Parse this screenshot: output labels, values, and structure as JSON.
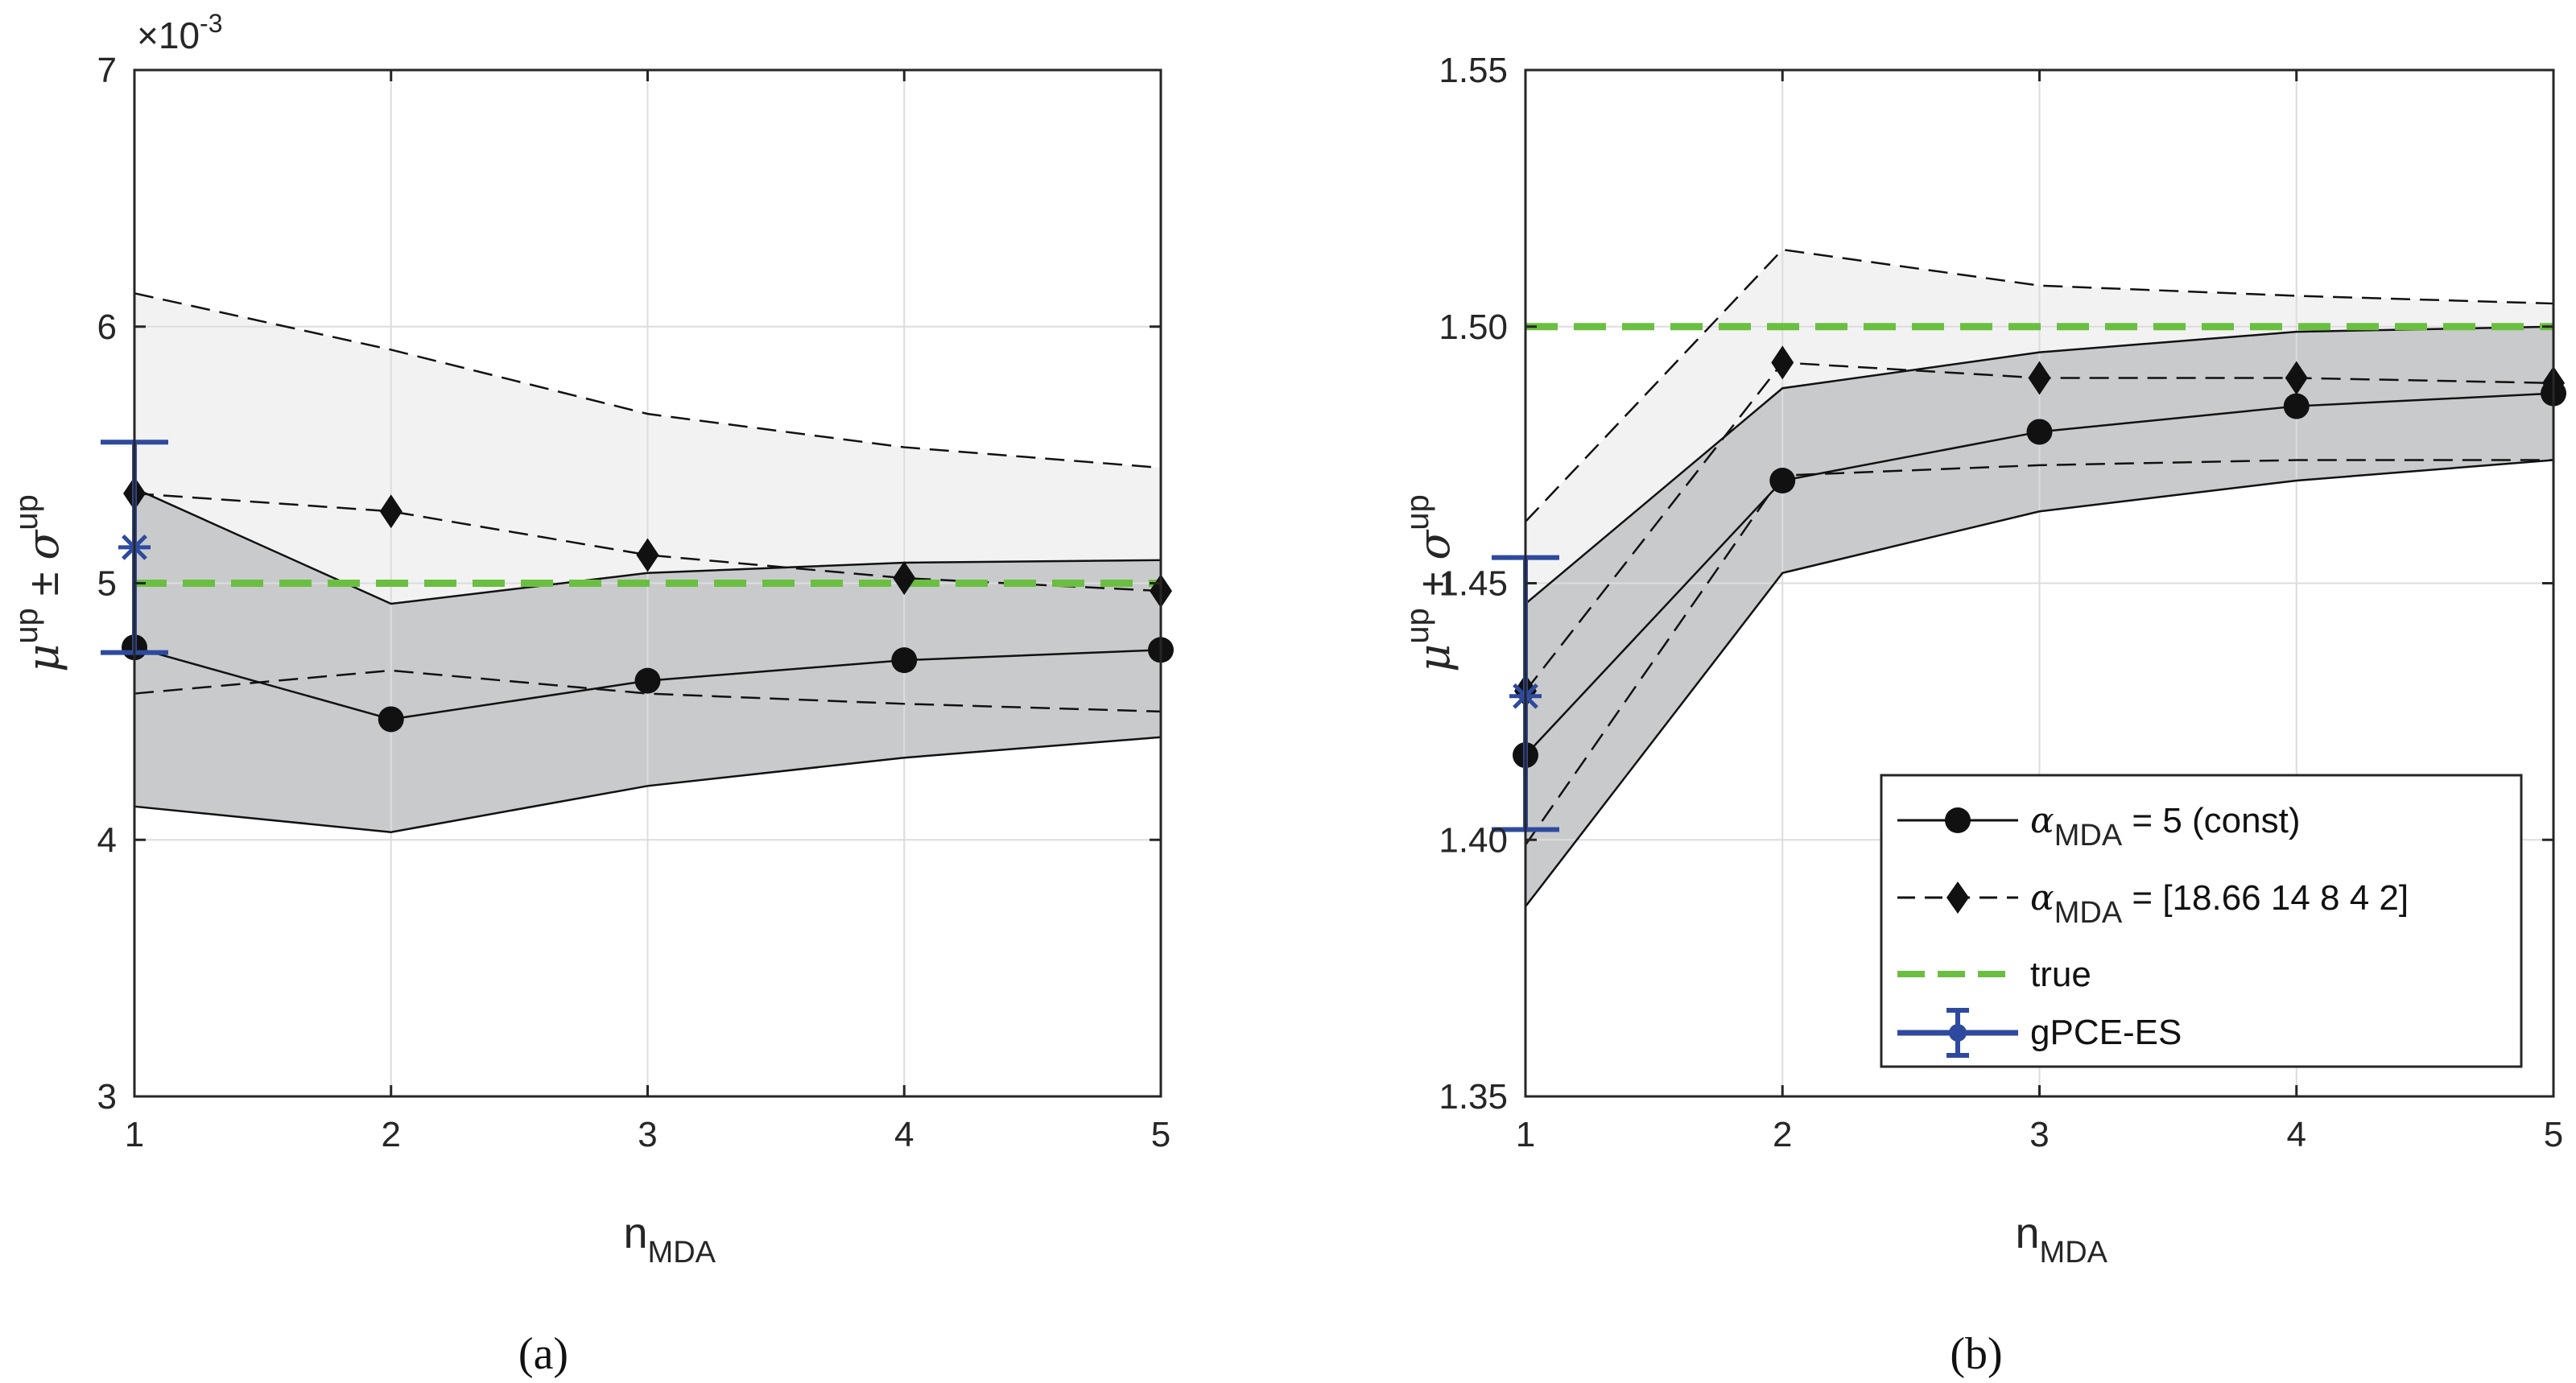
{
  "colors": {
    "band_light": "#f2f2f2",
    "band_dark": "#c9cacc",
    "line": "#111111",
    "grid": "#dcdcdc",
    "axis": "#262626",
    "true": "#6abf40",
    "gpce": "#2e4a9e"
  },
  "legend": {
    "items": [
      {
        "label_sym": "α",
        "label_sub": "MDA",
        "label_rest": " = 5 (const)",
        "style": "solid-circle"
      },
      {
        "label_sym": "α",
        "label_sub": "MDA",
        "label_rest": " = [18.66 14 8 4 2]",
        "style": "dashed-diamond"
      },
      {
        "label": "true",
        "style": "green-dashed"
      },
      {
        "label": "gPCE-ES",
        "style": "errorbar"
      }
    ]
  },
  "chart_data": [
    {
      "id": "a",
      "type": "line",
      "caption": "a",
      "xlabel": {
        "main": "n",
        "sub": "MDA"
      },
      "ylabel": {
        "sym": "μ",
        "sup1": "up",
        "pm": "±",
        "sym2": "σ",
        "sup2": "up"
      },
      "xlim": [
        1,
        5
      ],
      "ylim": [
        3,
        7
      ],
      "xticks": [
        1,
        2,
        3,
        4,
        5
      ],
      "yticks": [
        3,
        4,
        5,
        6,
        7
      ],
      "ytick_labels": [
        "3",
        "4",
        "5",
        "6",
        "7"
      ],
      "yscale_label": {
        "base": "×10",
        "exp": "-3"
      },
      "x": [
        1,
        2,
        3,
        4,
        5
      ],
      "series": [
        {
          "name": "alpha_MDA = 5 (const)",
          "mean": [
            4.75,
            4.47,
            4.62,
            4.7,
            4.74
          ],
          "upper": [
            5.37,
            4.92,
            5.04,
            5.08,
            5.09
          ],
          "lower": [
            4.13,
            4.03,
            4.21,
            4.32,
            4.4
          ]
        },
        {
          "name": "alpha_MDA = [18.66 14 8 4 2]",
          "mean": [
            5.35,
            5.28,
            5.11,
            5.02,
            4.97
          ],
          "upper": [
            6.13,
            5.91,
            5.66,
            5.53,
            5.45
          ],
          "lower": [
            4.57,
            4.66,
            4.57,
            4.53,
            4.5
          ]
        }
      ],
      "true_value": 5.0,
      "gpce_es": {
        "x": 1,
        "mean": 5.14,
        "upper": 5.55,
        "lower": 4.73
      }
    },
    {
      "id": "b",
      "type": "line",
      "caption": "b",
      "xlabel": {
        "main": "n",
        "sub": "MDA"
      },
      "ylabel": {
        "sym": "μ",
        "sup1": "up",
        "pm": "±",
        "sym2": "σ",
        "sup2": "up"
      },
      "xlim": [
        1,
        5
      ],
      "ylim": [
        1.35,
        1.55
      ],
      "xticks": [
        1,
        2,
        3,
        4,
        5
      ],
      "yticks": [
        1.35,
        1.4,
        1.45,
        1.5,
        1.55
      ],
      "ytick_labels": [
        "1.35",
        "1.40",
        "1.45",
        "1.50",
        "1.55"
      ],
      "x": [
        1,
        2,
        3,
        4,
        5
      ],
      "series": [
        {
          "name": "alpha_MDA = 5 (const)",
          "mean": [
            1.4165,
            1.47,
            1.4795,
            1.4845,
            1.487
          ],
          "upper": [
            1.446,
            1.488,
            1.495,
            1.499,
            1.5
          ],
          "lower": [
            1.387,
            1.452,
            1.464,
            1.47,
            1.474
          ]
        },
        {
          "name": "alpha_MDA = [18.66 14 8 4 2]",
          "mean": [
            1.429,
            1.493,
            1.49,
            1.49,
            1.489
          ],
          "upper": [
            1.462,
            1.515,
            1.508,
            1.506,
            1.5045
          ],
          "lower": [
            1.399,
            1.471,
            1.473,
            1.474,
            1.474
          ]
        }
      ],
      "true_value": 1.5,
      "gpce_es": {
        "x": 1,
        "mean": 1.428,
        "upper": 1.455,
        "lower": 1.402
      }
    }
  ]
}
